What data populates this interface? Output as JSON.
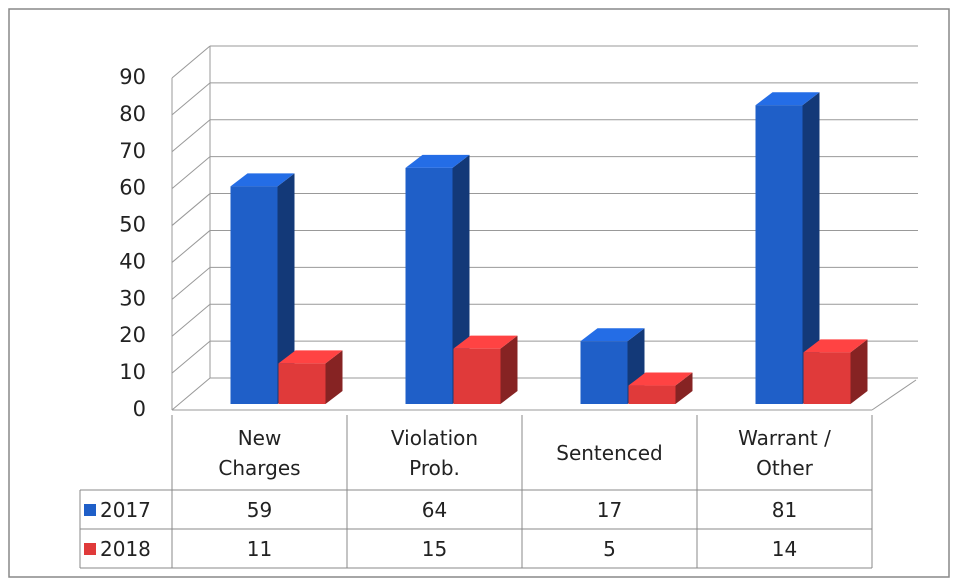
{
  "chart_data": {
    "type": "bar3d",
    "categories": [
      "New Charges",
      "Violation Prob.",
      "Sentenced",
      "Warrant / Other"
    ],
    "series": [
      {
        "name": "2017",
        "color": "#1f5fc8",
        "values": [
          59,
          64,
          17,
          81
        ]
      },
      {
        "name": "2018",
        "color": "#e03a3a",
        "values": [
          11,
          15,
          5,
          14
        ]
      }
    ],
    "ylim": [
      0,
      90
    ],
    "yticks": [
      0,
      10,
      20,
      30,
      40,
      50,
      60,
      70,
      80,
      90
    ],
    "grid": true,
    "data_table": true
  }
}
